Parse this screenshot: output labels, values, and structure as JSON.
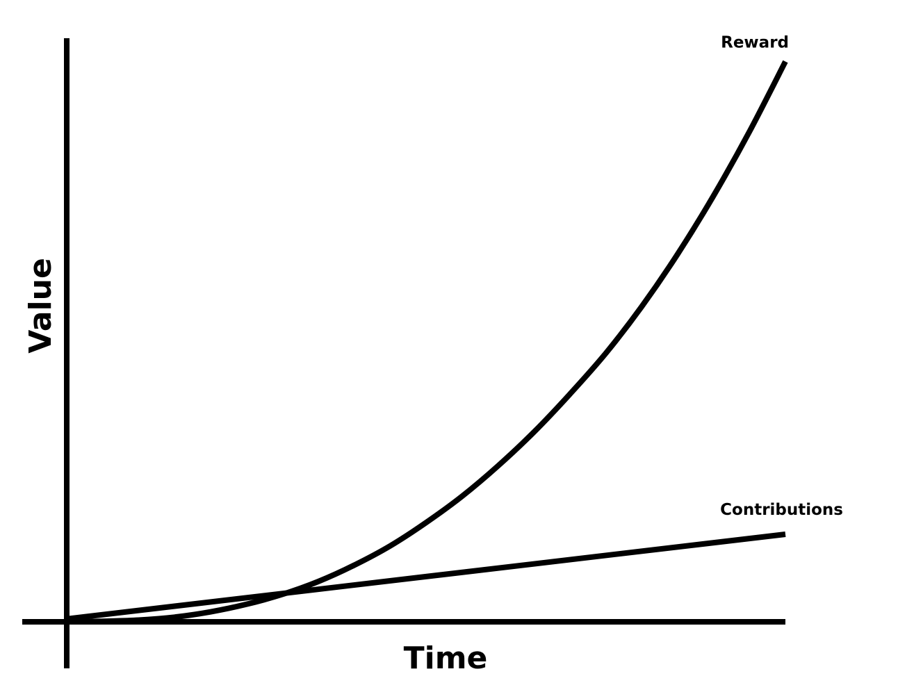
{
  "chart_data": {
    "type": "line",
    "xlabel": "Time",
    "ylabel": "Value",
    "xlim": [
      0,
      10
    ],
    "ylim": [
      0,
      10
    ],
    "grid": false,
    "legend": "inline-labels",
    "series": [
      {
        "name": "Reward",
        "color": "#000000",
        "x": [
          0,
          0.5,
          1,
          1.5,
          2,
          2.5,
          3,
          3.5,
          4,
          4.5,
          5,
          5.5,
          6,
          6.5,
          7,
          7.5,
          8,
          8.5,
          9,
          9.5,
          10
        ],
        "y": [
          0,
          0.01,
          0.03,
          0.08,
          0.17,
          0.3,
          0.47,
          0.69,
          0.97,
          1.3,
          1.7,
          2.15,
          2.67,
          3.25,
          3.9,
          4.6,
          5.4,
          6.3,
          7.3,
          8.4,
          9.6
        ]
      },
      {
        "name": "Contributions",
        "color": "#000000",
        "x": [
          0,
          10
        ],
        "y": [
          0.05,
          1.5
        ]
      }
    ]
  }
}
